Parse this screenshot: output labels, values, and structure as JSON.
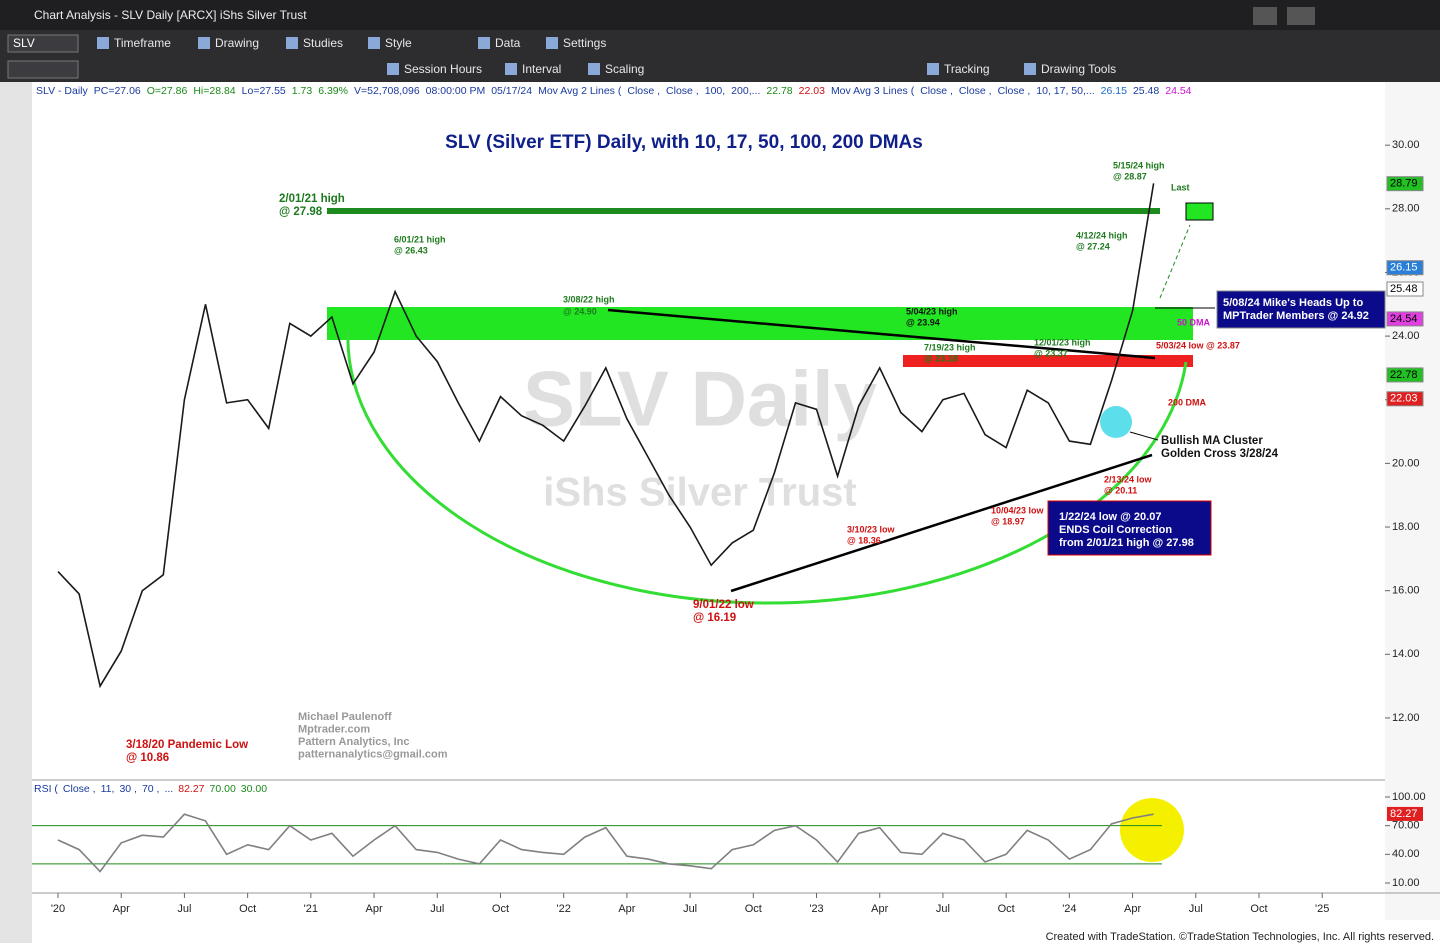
{
  "window": {
    "title": "Chart Analysis - SLV Daily [ARCX] iShs Silver Trust"
  },
  "toolbar": {
    "symbol": "SLV",
    "row1": [
      "Timeframe",
      "Drawing",
      "Studies",
      "Style",
      "Data",
      "Settings"
    ],
    "row2": [
      "Session Hours",
      "Interval",
      "Scaling",
      "Tracking",
      "Drawing Tools"
    ]
  },
  "status_line": [
    "SLV - Daily",
    "PC=27.06",
    "O=27.86",
    "Hi=28.84",
    "Lo=27.55",
    "1.73",
    "6.39%",
    "V=52,708,096",
    "08:00:00 PM",
    "05/17/24",
    "Mov Avg 2 Lines (",
    "Close ,",
    "Close ,",
    "100,",
    "200,...",
    "22.78",
    "22.03",
    "Mov Avg 3 Lines (",
    "Close ,",
    "Close ,",
    "Close ,",
    "10, 17, 50,...",
    "26.15",
    "25.48",
    "24.54"
  ],
  "chart_data": {
    "type": "line",
    "title": "SLV (Silver ETF) Daily, with 10, 17, 50, 100, 200 DMAs",
    "color": "#1a1a1a",
    "categories": [
      "'20",
      null,
      null,
      "Apr",
      null,
      null,
      "Jul",
      null,
      null,
      "Oct",
      null,
      null,
      "'21",
      null,
      null,
      "Apr",
      null,
      null,
      "Jul",
      null,
      null,
      "Oct",
      null,
      null,
      "'22",
      null,
      null,
      "Apr",
      null,
      null,
      "Jul",
      null,
      null,
      "Oct",
      null,
      null,
      "'23",
      null,
      null,
      "Apr",
      null,
      null,
      "Jul",
      null,
      null,
      "Oct",
      null,
      null,
      "'24",
      null,
      null,
      "Apr",
      null,
      null,
      "Jul",
      null,
      null,
      "Oct",
      null,
      null,
      "'25"
    ],
    "values": [
      16.6,
      15.9,
      13.0,
      14.1,
      16.0,
      16.5,
      22.0,
      25.0,
      21.9,
      22.0,
      21.1,
      24.4,
      24.0,
      24.6,
      22.5,
      23.5,
      25.4,
      24.0,
      23.2,
      21.9,
      20.7,
      22.1,
      21.5,
      21.2,
      20.7,
      21.8,
      23.0,
      21.4,
      20.2,
      19.0,
      18.0,
      16.8,
      17.5,
      17.9,
      19.7,
      21.9,
      21.7,
      19.6,
      21.8,
      23.0,
      21.6,
      21.0,
      22.0,
      22.2,
      20.9,
      20.5,
      22.3,
      21.9,
      20.7,
      20.6,
      22.6,
      24.8,
      28.8,
      null,
      null,
      null,
      null,
      null,
      null,
      null,
      null
    ],
    "ylim": [
      10.05,
      31.42
    ],
    "yticks": [
      {
        "value": 12,
        "label": "12.00"
      },
      {
        "value": 14,
        "label": "14.00"
      },
      {
        "value": 16,
        "label": "16.00"
      },
      {
        "value": 18,
        "label": "18.00"
      },
      {
        "value": 20,
        "label": "20.00"
      },
      {
        "value": 22,
        "label": "22.00"
      },
      {
        "value": 24,
        "label": "24.00"
      },
      {
        "value": 26,
        "label": "26.00"
      },
      {
        "value": 28,
        "label": "28.00"
      },
      {
        "value": 30,
        "label": "30.00"
      }
    ],
    "price_labels": [
      28.79,
      26.15,
      25.48,
      24.54,
      22.78,
      22.03
    ],
    "watermark": [
      "SLV Daily",
      "iShs Silver Trust"
    ],
    "annotations": [
      "2/01/21 high",
      "@ 27.98",
      "6/01/21 high",
      "@ 26.43",
      "3/08/22 high",
      "@ 24.90",
      "5/04/23 high",
      "@ 23.94",
      "7/19/23 high",
      "@ 23.18",
      "12/01/23 high",
      "@ 23.37",
      "4/12/24 high",
      "@ 27.24",
      "5/15/24 high",
      "@ 28.87",
      "Last",
      "50 DMA",
      "5/03/24 low @ 23.87",
      "200 DMA",
      "Bullish MA Cluster",
      "Golden Cross 3/28/24",
      "2/13/24 low",
      "@ 20.11",
      "10/04/23 low",
      "@ 18.97",
      "3/10/23 low",
      "@ 18.36",
      "9/01/22 low",
      "@ 16.19",
      "3/18/20 Pandemic Low",
      "@ 10.86"
    ],
    "box_low": [
      "1/22/24 low @ 20.07",
      "ENDS Coil Correction",
      "from 2/01/21 high @ 27.98"
    ],
    "box_heads_up": [
      "5/08/24 Mike's Heads Up to",
      "MPTrader Members @ 24.92"
    ],
    "credits": [
      "Michael Paulenoff",
      "Mptrader.com",
      "Pattern Analytics, Inc",
      "patternanalytics@gmail.com"
    ]
  },
  "rsi": {
    "header": [
      "RSI (",
      "Close ,",
      "11,",
      "30 ,",
      "70 ,",
      "...",
      "82.27",
      "70.00",
      "30.00"
    ],
    "ylim": [
      -0.47,
      114.65
    ],
    "yticks": [
      {
        "value": 100,
        "label": "100.00"
      },
      {
        "value": 70,
        "label": "70.00"
      },
      {
        "value": 40,
        "label": "40.00"
      },
      {
        "value": 10,
        "label": "10.00"
      }
    ],
    "levels": [
      70,
      30
    ],
    "last": 82.27,
    "values": [
      55,
      45,
      22,
      52,
      60,
      58,
      82,
      75,
      40,
      50,
      45,
      70,
      55,
      62,
      38,
      55,
      70,
      45,
      42,
      35,
      30,
      55,
      45,
      42,
      40,
      58,
      68,
      38,
      35,
      30,
      28,
      25,
      45,
      50,
      65,
      70,
      55,
      32,
      62,
      68,
      42,
      40,
      62,
      55,
      32,
      40,
      65,
      55,
      35,
      45,
      72,
      78,
      82
    ]
  },
  "footer": "Created with TradeStation. ©TradeStation Technologies, Inc. All rights reserved."
}
